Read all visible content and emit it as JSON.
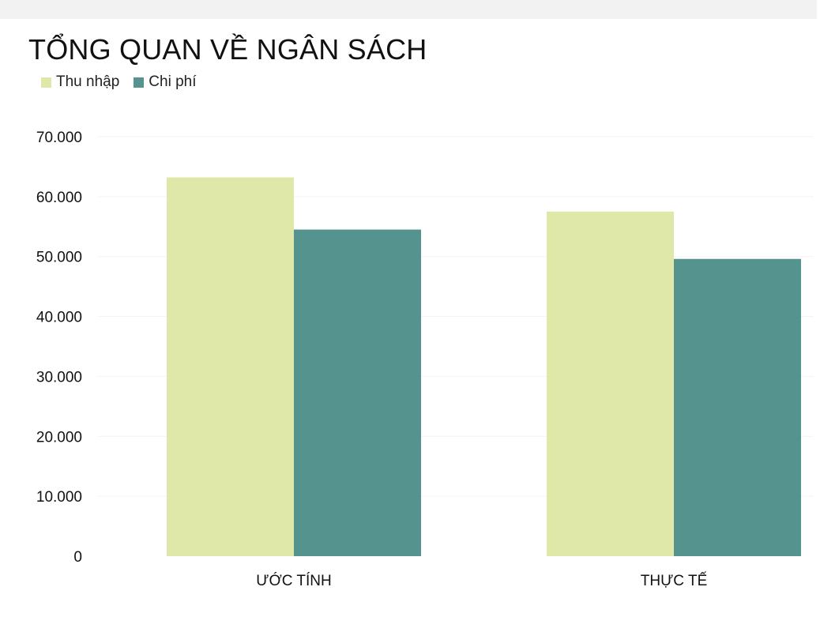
{
  "chart_data": {
    "type": "bar",
    "title": "TỔNG QUAN VỀ NGÂN SÁCH",
    "categories": [
      "ƯỚC TÍNH",
      "THỰC TẾ"
    ],
    "series": [
      {
        "name": "Thu nhập",
        "color": "#e0e8a9",
        "values": [
          63200,
          57500
        ]
      },
      {
        "name": "Chi phí",
        "color": "#55938f",
        "values": [
          54500,
          49600
        ]
      }
    ],
    "yticks": [
      {
        "value": 0,
        "label": "0"
      },
      {
        "value": 10000,
        "label": "10.000"
      },
      {
        "value": 20000,
        "label": "20.000"
      },
      {
        "value": 30000,
        "label": "30.000"
      },
      {
        "value": 40000,
        "label": "40.000"
      },
      {
        "value": 50000,
        "label": "50.000"
      },
      {
        "value": 60000,
        "label": "60.000"
      },
      {
        "value": 70000,
        "label": "70.000"
      }
    ],
    "ylim": [
      0,
      70000
    ],
    "grid": true,
    "legend_position": "top-left",
    "gridline_color": "#f3f3f3"
  }
}
